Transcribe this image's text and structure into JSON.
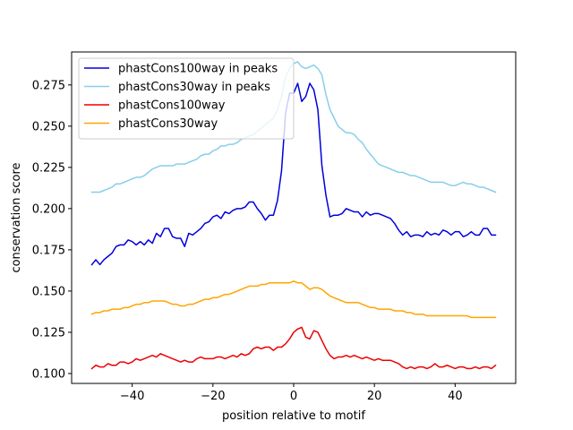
{
  "chart_data": {
    "type": "line",
    "xlabel": "position relative to motif",
    "ylabel": "conservation score",
    "xlim": [
      -55,
      55
    ],
    "ylim": [
      0.094,
      0.295
    ],
    "xticks": [
      -40,
      -20,
      0,
      20,
      40
    ],
    "xtick_labels": [
      "−40",
      "−20",
      "0",
      "20",
      "40"
    ],
    "yticks": [
      0.1,
      0.125,
      0.15,
      0.175,
      0.2,
      0.225,
      0.25,
      0.275
    ],
    "ytick_labels": [
      "0.100",
      "0.125",
      "0.150",
      "0.175",
      "0.200",
      "0.225",
      "0.250",
      "0.275"
    ],
    "grid": false,
    "legend_position": "top-left",
    "x": [
      -50,
      -49,
      -48,
      -47,
      -46,
      -45,
      -44,
      -43,
      -42,
      -41,
      -40,
      -39,
      -38,
      -37,
      -36,
      -35,
      -34,
      -33,
      -32,
      -31,
      -30,
      -29,
      -28,
      -27,
      -26,
      -25,
      -24,
      -23,
      -22,
      -21,
      -20,
      -19,
      -18,
      -17,
      -16,
      -15,
      -14,
      -13,
      -12,
      -11,
      -10,
      -9,
      -8,
      -7,
      -6,
      -5,
      -4,
      -3,
      -2,
      -1,
      0,
      1,
      2,
      3,
      4,
      5,
      6,
      7,
      8,
      9,
      10,
      11,
      12,
      13,
      14,
      15,
      16,
      17,
      18,
      19,
      20,
      21,
      22,
      23,
      24,
      25,
      26,
      27,
      28,
      29,
      30,
      31,
      32,
      33,
      34,
      35,
      36,
      37,
      38,
      39,
      40,
      41,
      42,
      43,
      44,
      45,
      46,
      47,
      48,
      49,
      50
    ],
    "series": [
      {
        "name": "phastCons100way in peaks",
        "color": "#0000dd",
        "values": [
          0.166,
          0.169,
          0.166,
          0.169,
          0.171,
          0.173,
          0.177,
          0.178,
          0.178,
          0.181,
          0.18,
          0.178,
          0.18,
          0.178,
          0.181,
          0.179,
          0.185,
          0.183,
          0.188,
          0.188,
          0.183,
          0.182,
          0.182,
          0.177,
          0.185,
          0.184,
          0.186,
          0.188,
          0.191,
          0.192,
          0.195,
          0.196,
          0.194,
          0.198,
          0.197,
          0.199,
          0.2,
          0.2,
          0.201,
          0.204,
          0.204,
          0.2,
          0.197,
          0.193,
          0.196,
          0.196,
          0.205,
          0.223,
          0.258,
          0.27,
          0.27,
          0.276,
          0.265,
          0.268,
          0.276,
          0.272,
          0.26,
          0.226,
          0.208,
          0.195,
          0.196,
          0.196,
          0.197,
          0.2,
          0.199,
          0.198,
          0.198,
          0.195,
          0.198,
          0.196,
          0.197,
          0.197,
          0.196,
          0.195,
          0.194,
          0.191,
          0.187,
          0.184,
          0.186,
          0.183,
          0.184,
          0.184,
          0.183,
          0.186,
          0.184,
          0.185,
          0.184,
          0.187,
          0.186,
          0.184,
          0.186,
          0.186,
          0.183,
          0.184,
          0.186,
          0.184,
          0.184,
          0.188,
          0.188,
          0.184,
          0.184
        ]
      },
      {
        "name": "phastCons30way in peaks",
        "color": "#87ceeb",
        "values": [
          0.21,
          0.21,
          0.21,
          0.211,
          0.212,
          0.213,
          0.215,
          0.215,
          0.216,
          0.217,
          0.218,
          0.219,
          0.219,
          0.22,
          0.222,
          0.224,
          0.225,
          0.226,
          0.226,
          0.226,
          0.226,
          0.227,
          0.227,
          0.227,
          0.228,
          0.229,
          0.23,
          0.232,
          0.233,
          0.233,
          0.235,
          0.236,
          0.238,
          0.238,
          0.239,
          0.239,
          0.24,
          0.242,
          0.243,
          0.244,
          0.245,
          0.247,
          0.249,
          0.251,
          0.253,
          0.255,
          0.26,
          0.268,
          0.28,
          0.285,
          0.288,
          0.289,
          0.286,
          0.285,
          0.286,
          0.287,
          0.285,
          0.281,
          0.269,
          0.26,
          0.255,
          0.25,
          0.248,
          0.246,
          0.246,
          0.245,
          0.242,
          0.24,
          0.236,
          0.233,
          0.23,
          0.227,
          0.226,
          0.225,
          0.224,
          0.223,
          0.222,
          0.222,
          0.221,
          0.22,
          0.22,
          0.219,
          0.218,
          0.217,
          0.216,
          0.216,
          0.216,
          0.216,
          0.215,
          0.214,
          0.214,
          0.215,
          0.216,
          0.215,
          0.215,
          0.214,
          0.213,
          0.213,
          0.212,
          0.211,
          0.21
        ]
      },
      {
        "name": "phastCons100way",
        "color": "#ee0000",
        "values": [
          0.103,
          0.105,
          0.104,
          0.104,
          0.106,
          0.105,
          0.105,
          0.107,
          0.107,
          0.106,
          0.107,
          0.109,
          0.108,
          0.109,
          0.11,
          0.111,
          0.11,
          0.112,
          0.111,
          0.11,
          0.109,
          0.108,
          0.107,
          0.108,
          0.107,
          0.107,
          0.109,
          0.11,
          0.109,
          0.109,
          0.109,
          0.11,
          0.11,
          0.109,
          0.11,
          0.111,
          0.11,
          0.112,
          0.111,
          0.112,
          0.115,
          0.116,
          0.115,
          0.116,
          0.116,
          0.114,
          0.116,
          0.116,
          0.118,
          0.121,
          0.125,
          0.127,
          0.128,
          0.122,
          0.121,
          0.126,
          0.125,
          0.12,
          0.115,
          0.111,
          0.109,
          0.11,
          0.11,
          0.111,
          0.11,
          0.111,
          0.11,
          0.109,
          0.11,
          0.109,
          0.108,
          0.109,
          0.108,
          0.108,
          0.108,
          0.107,
          0.106,
          0.104,
          0.103,
          0.104,
          0.103,
          0.104,
          0.104,
          0.103,
          0.104,
          0.106,
          0.104,
          0.104,
          0.105,
          0.104,
          0.103,
          0.104,
          0.104,
          0.103,
          0.103,
          0.104,
          0.103,
          0.104,
          0.104,
          0.103,
          0.105
        ]
      },
      {
        "name": "phastCons30way",
        "color": "#ffa500",
        "values": [
          0.136,
          0.137,
          0.137,
          0.138,
          0.138,
          0.139,
          0.139,
          0.139,
          0.14,
          0.14,
          0.141,
          0.142,
          0.142,
          0.143,
          0.143,
          0.144,
          0.144,
          0.144,
          0.144,
          0.143,
          0.142,
          0.142,
          0.141,
          0.141,
          0.142,
          0.142,
          0.143,
          0.144,
          0.145,
          0.145,
          0.146,
          0.146,
          0.147,
          0.148,
          0.148,
          0.149,
          0.15,
          0.151,
          0.152,
          0.153,
          0.153,
          0.153,
          0.154,
          0.154,
          0.155,
          0.155,
          0.155,
          0.155,
          0.155,
          0.155,
          0.156,
          0.155,
          0.155,
          0.153,
          0.151,
          0.152,
          0.152,
          0.151,
          0.149,
          0.147,
          0.146,
          0.145,
          0.144,
          0.143,
          0.143,
          0.143,
          0.143,
          0.142,
          0.141,
          0.14,
          0.14,
          0.139,
          0.139,
          0.139,
          0.139,
          0.138,
          0.138,
          0.138,
          0.137,
          0.137,
          0.136,
          0.136,
          0.136,
          0.135,
          0.135,
          0.135,
          0.135,
          0.135,
          0.135,
          0.135,
          0.135,
          0.135,
          0.135,
          0.135,
          0.134,
          0.134,
          0.134,
          0.134,
          0.134,
          0.134,
          0.134
        ]
      }
    ]
  }
}
